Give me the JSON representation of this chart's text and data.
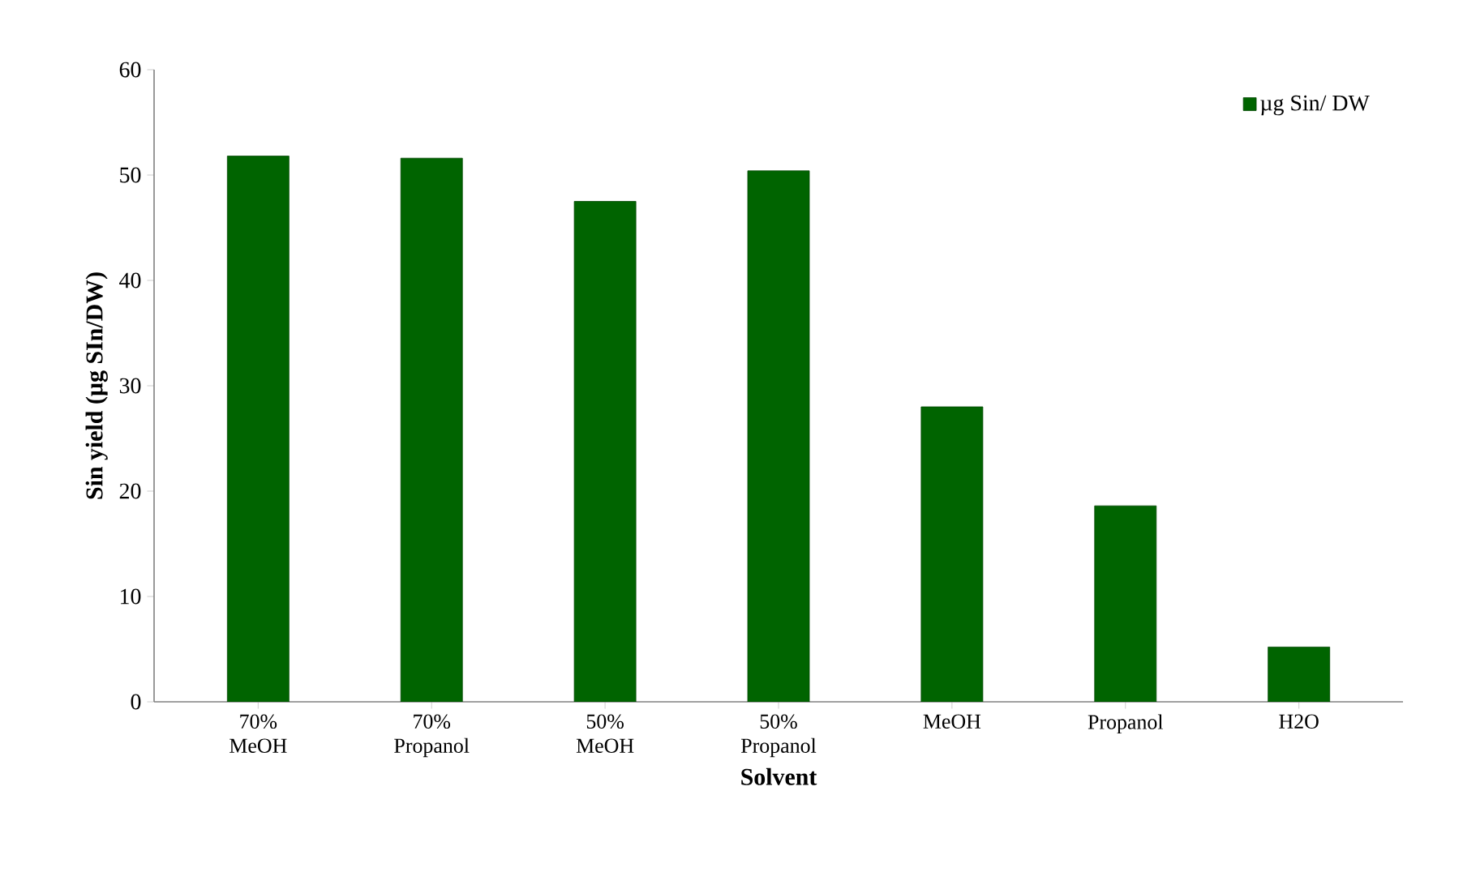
{
  "chart_data": {
    "type": "bar",
    "categories": [
      "70% MeOH",
      "70% Propanol",
      "50% MeOH",
      "50% Propanol",
      "MeOH",
      "Propanol",
      "H2O"
    ],
    "series": [
      {
        "name": "µg Sin/ DW",
        "color": "#006400",
        "values": [
          51.8,
          51.6,
          47.5,
          50.4,
          28.0,
          18.6,
          5.2
        ]
      }
    ],
    "xlabel": "Solvent",
    "ylabel": "Sin yield (µg SIn/DW)",
    "ylim": [
      0,
      60
    ],
    "yticks": [
      0,
      10,
      20,
      30,
      40,
      50,
      60
    ],
    "legend": "top right",
    "grid": false
  }
}
